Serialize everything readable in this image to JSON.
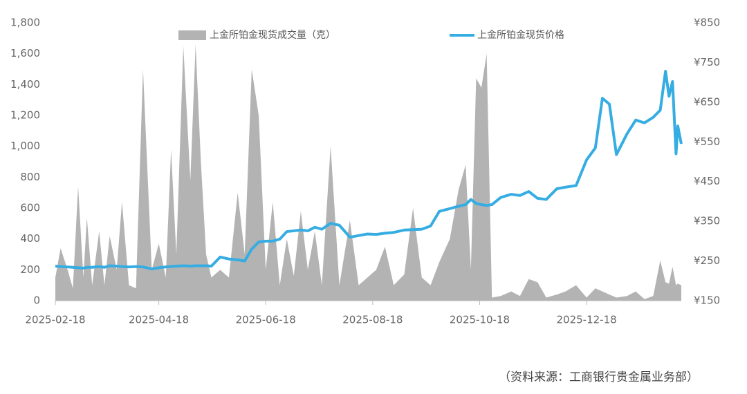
{
  "chart_data": {
    "type": "area-line",
    "x": [
      "2025-02-18",
      "2025-02-21",
      "2025-02-25",
      "2025-02-28",
      "2025-03-03",
      "2025-03-06",
      "2025-03-08",
      "2025-03-11",
      "2025-03-15",
      "2025-03-18",
      "2025-03-21",
      "2025-03-25",
      "2025-03-28",
      "2025-04-01",
      "2025-04-05",
      "2025-04-09",
      "2025-04-14",
      "2025-04-18",
      "2025-04-22",
      "2025-04-25",
      "2025-04-28",
      "2025-05-02",
      "2025-05-06",
      "2025-05-09",
      "2025-05-12",
      "2025-05-15",
      "2025-05-18",
      "2025-05-23",
      "2025-05-28",
      "2025-06-02",
      "2025-06-06",
      "2025-06-10",
      "2025-06-14",
      "2025-06-18",
      "2025-06-22",
      "2025-06-26",
      "2025-06-30",
      "2025-07-04",
      "2025-07-08",
      "2025-07-12",
      "2025-07-16",
      "2025-07-20",
      "2025-07-25",
      "2025-07-30",
      "2025-08-05",
      "2025-08-10",
      "2025-08-15",
      "2025-08-20",
      "2025-08-25",
      "2025-08-30",
      "2025-09-05",
      "2025-09-10",
      "2025-09-15",
      "2025-09-20",
      "2025-09-25",
      "2025-10-01",
      "2025-10-06",
      "2025-10-10",
      "2025-10-13",
      "2025-10-16",
      "2025-10-19",
      "2025-10-22",
      "2025-10-25",
      "2025-10-30",
      "2025-11-05",
      "2025-11-10",
      "2025-11-15",
      "2025-11-20",
      "2025-11-25",
      "2025-12-01",
      "2025-12-06",
      "2025-12-12",
      "2025-12-18",
      "2025-12-23",
      "2025-12-27",
      "2025-12-31",
      "2026-01-04",
      "2026-01-10",
      "2026-01-15",
      "2026-01-20",
      "2026-01-25",
      "2026-01-29",
      "2026-02-01",
      "2026-02-03",
      "2026-02-05",
      "2026-02-07",
      "2026-02-08",
      "2026-02-10"
    ],
    "series": [
      {
        "name": "上金所铂金现货成交量（克）",
        "color": "#b3b3b3",
        "kind": "area",
        "axis": "y",
        "values": [
          150,
          340,
          200,
          80,
          740,
          150,
          540,
          100,
          450,
          100,
          420,
          200,
          640,
          100,
          80,
          1500,
          200,
          370,
          150,
          980,
          300,
          1650,
          780,
          1660,
          900,
          300,
          150,
          200,
          150,
          700,
          300,
          1500,
          1200,
          200,
          640,
          100,
          400,
          160,
          580,
          200,
          450,
          100,
          1000,
          100,
          520,
          100,
          150,
          200,
          350,
          100,
          170,
          600,
          150,
          100,
          250,
          400,
          720,
          880,
          200,
          1440,
          1380,
          1600,
          20,
          30,
          60,
          30,
          140,
          120,
          20,
          40,
          60,
          100,
          20,
          80,
          60,
          40,
          20,
          30,
          60,
          10,
          30,
          260,
          120,
          110,
          220,
          100,
          110,
          100
        ]
      },
      {
        "name": "上金所铂金现货价格",
        "color": "#36ade2",
        "kind": "line",
        "axis": "y2",
        "values": [
          237,
          236,
          235,
          234,
          233,
          232,
          234,
          234,
          236,
          234,
          238,
          237,
          236,
          235,
          236,
          235,
          230,
          233,
          235,
          236,
          237,
          238,
          237,
          238,
          238,
          238,
          237,
          260,
          255,
          253,
          250,
          280,
          298,
          300,
          300,
          305,
          324,
          326,
          328,
          326,
          335,
          330,
          345,
          340,
          310,
          314,
          318,
          317,
          320,
          322,
          328,
          329,
          330,
          338,
          375,
          382,
          388,
          392,
          405,
          395,
          392,
          390,
          392,
          410,
          418,
          415,
          425,
          408,
          405,
          432,
          436,
          440,
          505,
          535,
          660,
          645,
          518,
          570,
          605,
          598,
          612,
          630,
          728,
          665,
          702,
          520,
          590,
          545
        ]
      }
    ],
    "xlim": [
      "2025-02-18",
      "2026-02-10"
    ],
    "xticks": [
      "2025-02-18",
      "2025-04-18",
      "2025-06-18",
      "2025-08-18",
      "2025-10-18",
      "2025-12-18"
    ],
    "ylim": [
      0,
      1800
    ],
    "yticks": [
      0,
      200,
      400,
      600,
      800,
      {
        "value": 1000,
        "label": "1,000"
      },
      {
        "value": 1200,
        "label": "1,200"
      },
      {
        "value": 1400,
        "label": "1,400"
      },
      {
        "value": 1600,
        "label": "1,600"
      },
      {
        "value": 1800,
        "label": "1,800"
      }
    ],
    "y2lim": [
      150,
      850
    ],
    "y2ticks": [
      {
        "value": 150,
        "label": "¥150"
      },
      {
        "value": 250,
        "label": "¥250"
      },
      {
        "value": 350,
        "label": "¥350"
      },
      {
        "value": 450,
        "label": "¥450"
      },
      {
        "value": 550,
        "label": "¥550"
      },
      {
        "value": 650,
        "label": "¥650"
      },
      {
        "value": 750,
        "label": "¥750"
      },
      {
        "value": 850,
        "label": "¥850"
      }
    ],
    "source": "（资料来源：工商银行贵金属业务部）"
  }
}
